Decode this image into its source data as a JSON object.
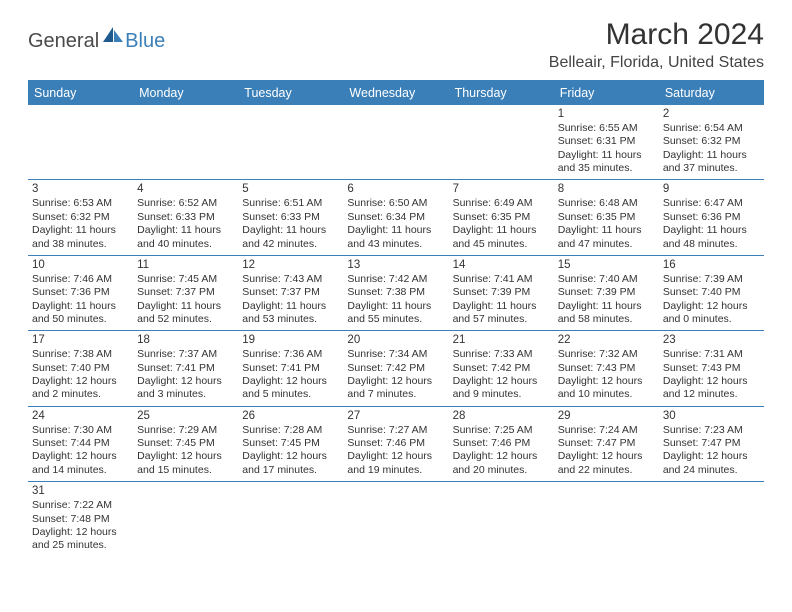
{
  "branding": {
    "logo_text1": "General",
    "logo_text2": "Blue",
    "logo_color_gray": "#4a4a4a",
    "logo_color_blue": "#3b7fb8"
  },
  "header": {
    "month_title": "March 2024",
    "location": "Belleair, Florida, United States"
  },
  "colors": {
    "header_bg": "#3b7fb8",
    "header_text": "#ffffff",
    "row_border": "#3b7fb8",
    "text": "#333333",
    "background": "#ffffff"
  },
  "typography": {
    "title_fontsize": 30,
    "location_fontsize": 16,
    "dayhead_fontsize": 12.5,
    "cell_fontsize": 10.5
  },
  "day_headers": [
    "Sunday",
    "Monday",
    "Tuesday",
    "Wednesday",
    "Thursday",
    "Friday",
    "Saturday"
  ],
  "weeks": [
    [
      null,
      null,
      null,
      null,
      null,
      {
        "day": "1",
        "sunrise": "Sunrise: 6:55 AM",
        "sunset": "Sunset: 6:31 PM",
        "daylight": "Daylight: 11 hours and 35 minutes."
      },
      {
        "day": "2",
        "sunrise": "Sunrise: 6:54 AM",
        "sunset": "Sunset: 6:32 PM",
        "daylight": "Daylight: 11 hours and 37 minutes."
      }
    ],
    [
      {
        "day": "3",
        "sunrise": "Sunrise: 6:53 AM",
        "sunset": "Sunset: 6:32 PM",
        "daylight": "Daylight: 11 hours and 38 minutes."
      },
      {
        "day": "4",
        "sunrise": "Sunrise: 6:52 AM",
        "sunset": "Sunset: 6:33 PM",
        "daylight": "Daylight: 11 hours and 40 minutes."
      },
      {
        "day": "5",
        "sunrise": "Sunrise: 6:51 AM",
        "sunset": "Sunset: 6:33 PM",
        "daylight": "Daylight: 11 hours and 42 minutes."
      },
      {
        "day": "6",
        "sunrise": "Sunrise: 6:50 AM",
        "sunset": "Sunset: 6:34 PM",
        "daylight": "Daylight: 11 hours and 43 minutes."
      },
      {
        "day": "7",
        "sunrise": "Sunrise: 6:49 AM",
        "sunset": "Sunset: 6:35 PM",
        "daylight": "Daylight: 11 hours and 45 minutes."
      },
      {
        "day": "8",
        "sunrise": "Sunrise: 6:48 AM",
        "sunset": "Sunset: 6:35 PM",
        "daylight": "Daylight: 11 hours and 47 minutes."
      },
      {
        "day": "9",
        "sunrise": "Sunrise: 6:47 AM",
        "sunset": "Sunset: 6:36 PM",
        "daylight": "Daylight: 11 hours and 48 minutes."
      }
    ],
    [
      {
        "day": "10",
        "sunrise": "Sunrise: 7:46 AM",
        "sunset": "Sunset: 7:36 PM",
        "daylight": "Daylight: 11 hours and 50 minutes."
      },
      {
        "day": "11",
        "sunrise": "Sunrise: 7:45 AM",
        "sunset": "Sunset: 7:37 PM",
        "daylight": "Daylight: 11 hours and 52 minutes."
      },
      {
        "day": "12",
        "sunrise": "Sunrise: 7:43 AM",
        "sunset": "Sunset: 7:37 PM",
        "daylight": "Daylight: 11 hours and 53 minutes."
      },
      {
        "day": "13",
        "sunrise": "Sunrise: 7:42 AM",
        "sunset": "Sunset: 7:38 PM",
        "daylight": "Daylight: 11 hours and 55 minutes."
      },
      {
        "day": "14",
        "sunrise": "Sunrise: 7:41 AM",
        "sunset": "Sunset: 7:39 PM",
        "daylight": "Daylight: 11 hours and 57 minutes."
      },
      {
        "day": "15",
        "sunrise": "Sunrise: 7:40 AM",
        "sunset": "Sunset: 7:39 PM",
        "daylight": "Daylight: 11 hours and 58 minutes."
      },
      {
        "day": "16",
        "sunrise": "Sunrise: 7:39 AM",
        "sunset": "Sunset: 7:40 PM",
        "daylight": "Daylight: 12 hours and 0 minutes."
      }
    ],
    [
      {
        "day": "17",
        "sunrise": "Sunrise: 7:38 AM",
        "sunset": "Sunset: 7:40 PM",
        "daylight": "Daylight: 12 hours and 2 minutes."
      },
      {
        "day": "18",
        "sunrise": "Sunrise: 7:37 AM",
        "sunset": "Sunset: 7:41 PM",
        "daylight": "Daylight: 12 hours and 3 minutes."
      },
      {
        "day": "19",
        "sunrise": "Sunrise: 7:36 AM",
        "sunset": "Sunset: 7:41 PM",
        "daylight": "Daylight: 12 hours and 5 minutes."
      },
      {
        "day": "20",
        "sunrise": "Sunrise: 7:34 AM",
        "sunset": "Sunset: 7:42 PM",
        "daylight": "Daylight: 12 hours and 7 minutes."
      },
      {
        "day": "21",
        "sunrise": "Sunrise: 7:33 AM",
        "sunset": "Sunset: 7:42 PM",
        "daylight": "Daylight: 12 hours and 9 minutes."
      },
      {
        "day": "22",
        "sunrise": "Sunrise: 7:32 AM",
        "sunset": "Sunset: 7:43 PM",
        "daylight": "Daylight: 12 hours and 10 minutes."
      },
      {
        "day": "23",
        "sunrise": "Sunrise: 7:31 AM",
        "sunset": "Sunset: 7:43 PM",
        "daylight": "Daylight: 12 hours and 12 minutes."
      }
    ],
    [
      {
        "day": "24",
        "sunrise": "Sunrise: 7:30 AM",
        "sunset": "Sunset: 7:44 PM",
        "daylight": "Daylight: 12 hours and 14 minutes."
      },
      {
        "day": "25",
        "sunrise": "Sunrise: 7:29 AM",
        "sunset": "Sunset: 7:45 PM",
        "daylight": "Daylight: 12 hours and 15 minutes."
      },
      {
        "day": "26",
        "sunrise": "Sunrise: 7:28 AM",
        "sunset": "Sunset: 7:45 PM",
        "daylight": "Daylight: 12 hours and 17 minutes."
      },
      {
        "day": "27",
        "sunrise": "Sunrise: 7:27 AM",
        "sunset": "Sunset: 7:46 PM",
        "daylight": "Daylight: 12 hours and 19 minutes."
      },
      {
        "day": "28",
        "sunrise": "Sunrise: 7:25 AM",
        "sunset": "Sunset: 7:46 PM",
        "daylight": "Daylight: 12 hours and 20 minutes."
      },
      {
        "day": "29",
        "sunrise": "Sunrise: 7:24 AM",
        "sunset": "Sunset: 7:47 PM",
        "daylight": "Daylight: 12 hours and 22 minutes."
      },
      {
        "day": "30",
        "sunrise": "Sunrise: 7:23 AM",
        "sunset": "Sunset: 7:47 PM",
        "daylight": "Daylight: 12 hours and 24 minutes."
      }
    ],
    [
      {
        "day": "31",
        "sunrise": "Sunrise: 7:22 AM",
        "sunset": "Sunset: 7:48 PM",
        "daylight": "Daylight: 12 hours and 25 minutes."
      },
      null,
      null,
      null,
      null,
      null,
      null
    ]
  ]
}
